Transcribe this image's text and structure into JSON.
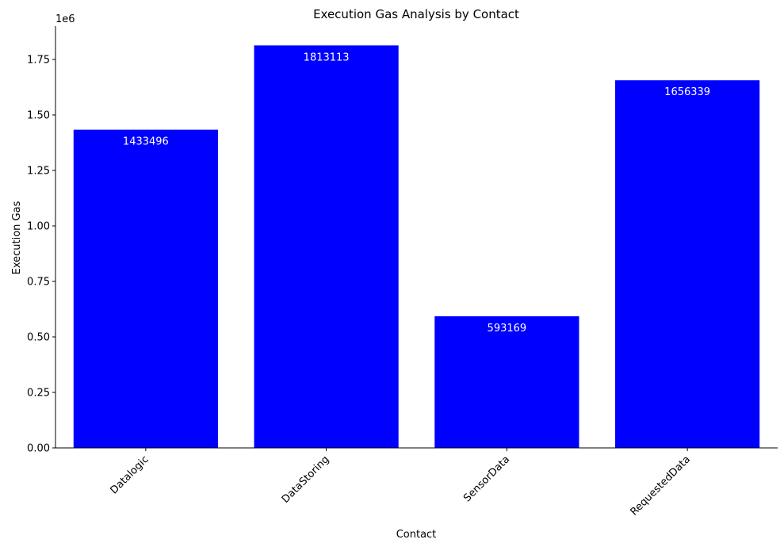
{
  "chart_data": {
    "type": "bar",
    "title": "Execution Gas Analysis by Contact",
    "xlabel": "Contact",
    "ylabel": "Execution Gas",
    "y_offset_label": "1e6",
    "categories": [
      "Datalogic",
      "DataStoring",
      "SensorData",
      "RequestedData"
    ],
    "values": [
      1433496,
      1813113,
      593169,
      1656339
    ],
    "data_labels": [
      "1433496",
      "1813113",
      "593169",
      "1656339"
    ],
    "ylim": [
      0,
      1900000
    ],
    "yticks": [
      0,
      250000,
      500000,
      750000,
      1000000,
      1250000,
      1500000,
      1750000
    ],
    "ytick_labels": [
      "0.00",
      "0.25",
      "0.50",
      "0.75",
      "1.00",
      "1.25",
      "1.50",
      "1.75"
    ],
    "bar_color": "#0000ff",
    "grid": false,
    "legend": "none"
  }
}
